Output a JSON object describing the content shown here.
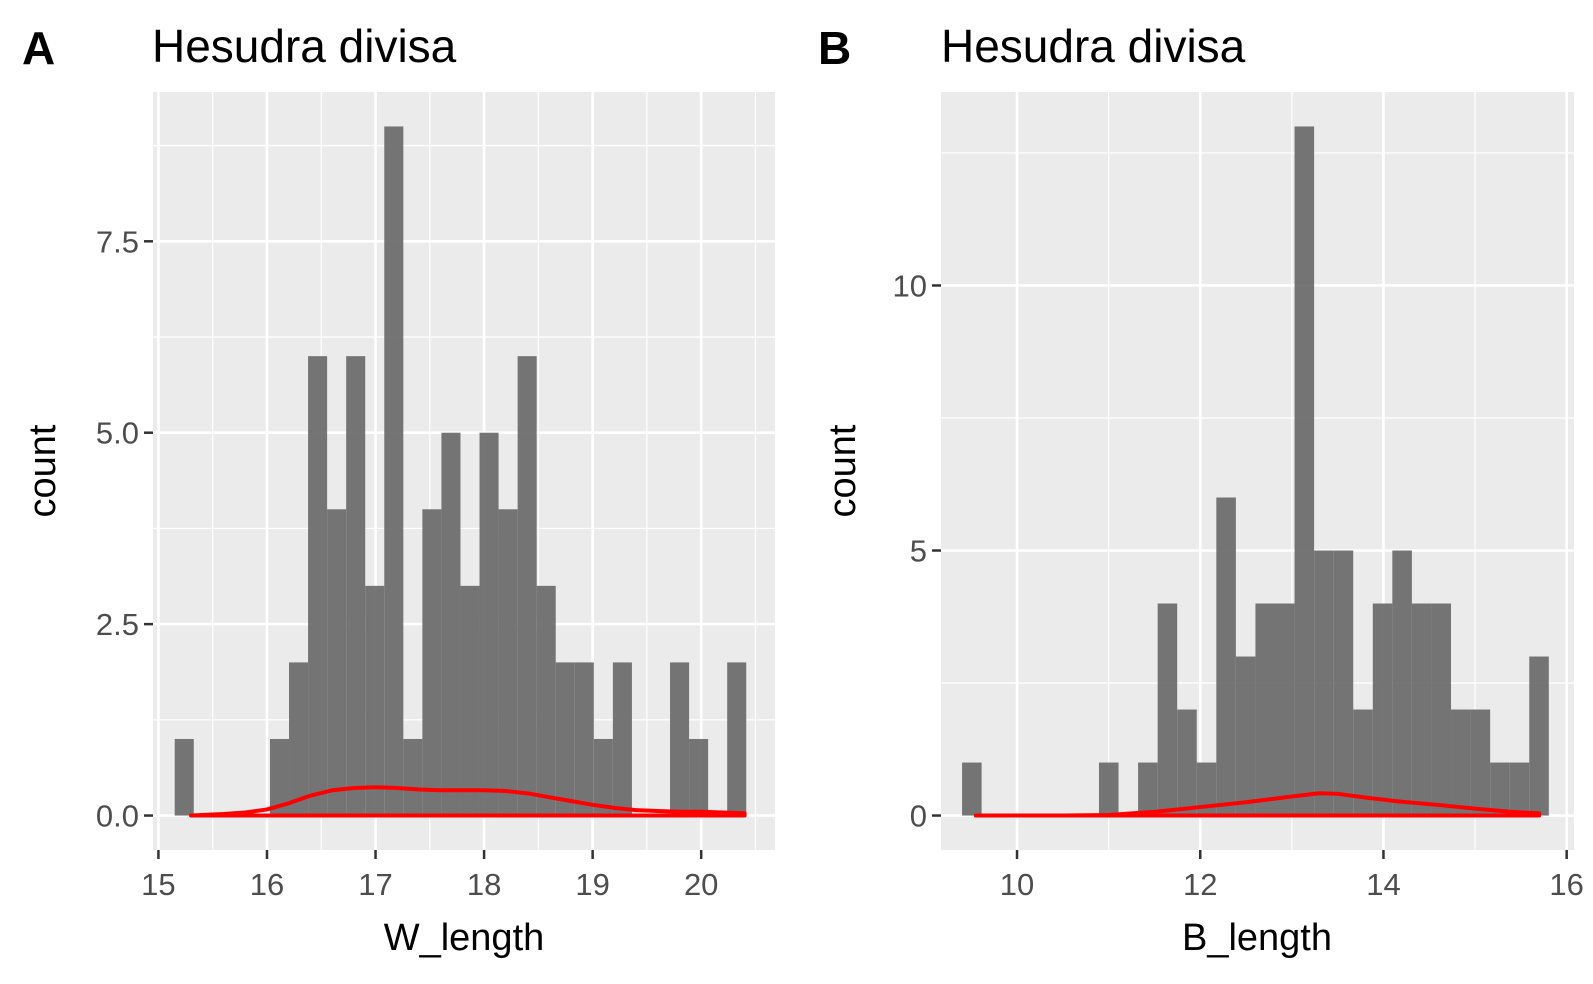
{
  "chart_data": [
    {
      "type": "bar",
      "panel_tag": "A",
      "title": "Hesudra divisa",
      "xlabel": "W_length",
      "ylabel": "count",
      "x_ticks": [
        "15",
        "16",
        "17",
        "18",
        "19",
        "20"
      ],
      "y_ticks": [
        "0.0",
        "2.5",
        "5.0",
        "7.5"
      ],
      "xlim": [
        14.95,
        20.68
      ],
      "ylim": [
        -0.45,
        9.45
      ],
      "grid": true,
      "bins": {
        "start": 15.15,
        "width": 0.1755,
        "counts": [
          1,
          0,
          0,
          0,
          0,
          1,
          2,
          6,
          4,
          6,
          3,
          9,
          1,
          4,
          5,
          3,
          5,
          4,
          6,
          3,
          2,
          2,
          1,
          2,
          0,
          0,
          2,
          1,
          0,
          2
        ]
      },
      "density": {
        "x": [
          15.3,
          15.6,
          15.8,
          16.0,
          16.2,
          16.4,
          16.6,
          16.8,
          17.0,
          17.2,
          17.4,
          17.6,
          17.8,
          18.0,
          18.2,
          18.4,
          18.6,
          18.8,
          19.0,
          19.2,
          19.4,
          19.6,
          19.8,
          20.0,
          20.2,
          20.4
        ],
        "y": [
          0.0,
          0.02,
          0.04,
          0.08,
          0.16,
          0.26,
          0.33,
          0.36,
          0.37,
          0.36,
          0.34,
          0.33,
          0.33,
          0.33,
          0.32,
          0.29,
          0.24,
          0.19,
          0.14,
          0.1,
          0.07,
          0.06,
          0.05,
          0.05,
          0.04,
          0.03
        ]
      },
      "colors": {
        "bars": "#6e6e6e",
        "density": "#ff0000",
        "panel_bg": "#ebebeb",
        "grid": "#ffffff"
      }
    },
    {
      "type": "bar",
      "panel_tag": "B",
      "title": "Hesudra divisa",
      "xlabel": "B_length",
      "ylabel": "count",
      "x_ticks": [
        "10",
        "12",
        "14",
        "16"
      ],
      "y_ticks": [
        "0",
        "5",
        "10"
      ],
      "xlim": [
        9.17,
        16.08
      ],
      "ylim": [
        -0.65,
        13.65
      ],
      "grid": true,
      "bins": {
        "start": 9.4,
        "width": 0.2135,
        "counts": [
          1,
          0,
          0,
          0,
          0,
          0,
          0,
          1,
          0,
          1,
          4,
          2,
          1,
          6,
          3,
          4,
          4,
          13,
          5,
          5,
          2,
          4,
          5,
          4,
          4,
          2,
          2,
          1,
          1,
          3
        ]
      },
      "density": {
        "x": [
          9.55,
          10.0,
          10.5,
          11.0,
          11.5,
          12.0,
          12.5,
          13.0,
          13.3,
          13.5,
          13.8,
          14.2,
          14.6,
          15.0,
          15.4,
          15.7
        ],
        "y": [
          0.0,
          0.0,
          0.0,
          0.01,
          0.07,
          0.16,
          0.25,
          0.36,
          0.42,
          0.41,
          0.34,
          0.26,
          0.2,
          0.13,
          0.07,
          0.04
        ]
      },
      "colors": {
        "bars": "#6e6e6e",
        "density": "#ff0000",
        "panel_bg": "#ebebeb",
        "grid": "#ffffff"
      }
    }
  ]
}
